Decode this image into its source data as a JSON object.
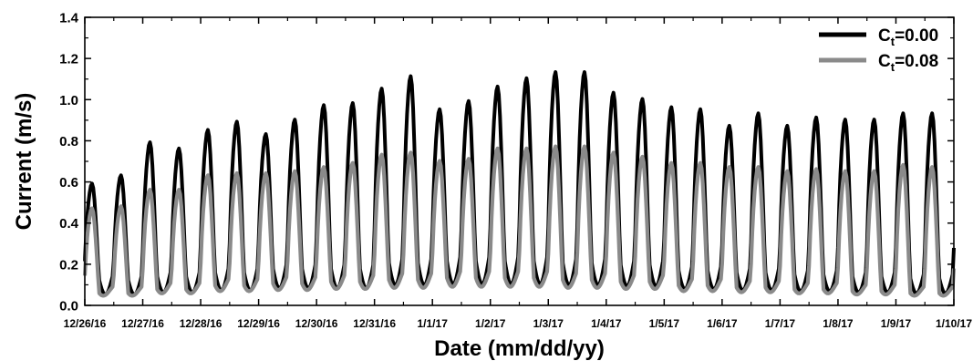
{
  "chart_data": {
    "type": "line",
    "xlabel": "Date (mm/dd/yy)",
    "ylabel": "Current (m/s)",
    "ylim": [
      0,
      1.4
    ],
    "yticks": [
      "0.0",
      "0.2",
      "0.4",
      "0.6",
      "0.8",
      "1.0",
      "1.2",
      "1.4"
    ],
    "xlim": [
      "12/26/16",
      "1/10/17"
    ],
    "xticks": [
      "12/26/16",
      "12/27/16",
      "12/28/16",
      "12/29/16",
      "12/30/16",
      "12/31/16",
      "1/1/17",
      "1/2/17",
      "1/3/17",
      "1/4/17",
      "1/5/17",
      "1/6/17",
      "1/7/17",
      "1/8/17",
      "1/9/17",
      "1/10/17"
    ],
    "legend_position": "top-right",
    "samples_per_day": 48,
    "series": [
      {
        "name_main": "C",
        "name_sub": "t",
        "name_suffix": "=0.00",
        "color": "#000000",
        "daily_peaks": [
          [
            0.59,
            0.63
          ],
          [
            0.79,
            0.76
          ],
          [
            0.85,
            0.89
          ],
          [
            0.83,
            0.9
          ],
          [
            0.97,
            0.98
          ],
          [
            1.05,
            1.11
          ],
          [
            0.95,
            0.99
          ],
          [
            1.06,
            1.1
          ],
          [
            1.13,
            1.13
          ],
          [
            1.03,
            1.0
          ],
          [
            0.96,
            0.95
          ],
          [
            0.87,
            0.93
          ],
          [
            0.87,
            0.91
          ],
          [
            0.9,
            0.9
          ],
          [
            0.93,
            0.93
          ]
        ],
        "daily_troughs": [
          0.14,
          0.16,
          0.18,
          0.2,
          0.2,
          0.23,
          0.24,
          0.24,
          0.23,
          0.22,
          0.19,
          0.18,
          0.17,
          0.16,
          0.15
        ],
        "daily_mins": [
          0.1,
          0.1,
          0.09,
          0.03,
          0.12,
          0.12,
          0.05,
          0.02,
          0.1,
          0.1,
          0.08,
          0.08,
          0.08,
          0.07,
          0.06
        ]
      },
      {
        "name_main": "C",
        "name_sub": "t",
        "name_suffix": "=0.08",
        "color": "#8a8a8a",
        "daily_peaks": [
          [
            0.47,
            0.48
          ],
          [
            0.56,
            0.56
          ],
          [
            0.63,
            0.64
          ],
          [
            0.64,
            0.65
          ],
          [
            0.67,
            0.69
          ],
          [
            0.73,
            0.74
          ],
          [
            0.7,
            0.71
          ],
          [
            0.76,
            0.76
          ],
          [
            0.77,
            0.77
          ],
          [
            0.74,
            0.72
          ],
          [
            0.69,
            0.69
          ],
          [
            0.67,
            0.67
          ],
          [
            0.65,
            0.66
          ],
          [
            0.65,
            0.65
          ],
          [
            0.68,
            0.67
          ]
        ],
        "daily_troughs": [
          0.08,
          0.1,
          0.12,
          0.13,
          0.14,
          0.15,
          0.16,
          0.16,
          0.15,
          0.14,
          0.12,
          0.11,
          0.1,
          0.09,
          0.08
        ],
        "daily_mins": [
          0.02,
          0.06,
          0.07,
          0.02,
          0.1,
          0.1,
          0.05,
          0.01,
          0.08,
          0.08,
          0.01,
          0.06,
          0.07,
          0.07,
          0.06
        ]
      }
    ]
  }
}
